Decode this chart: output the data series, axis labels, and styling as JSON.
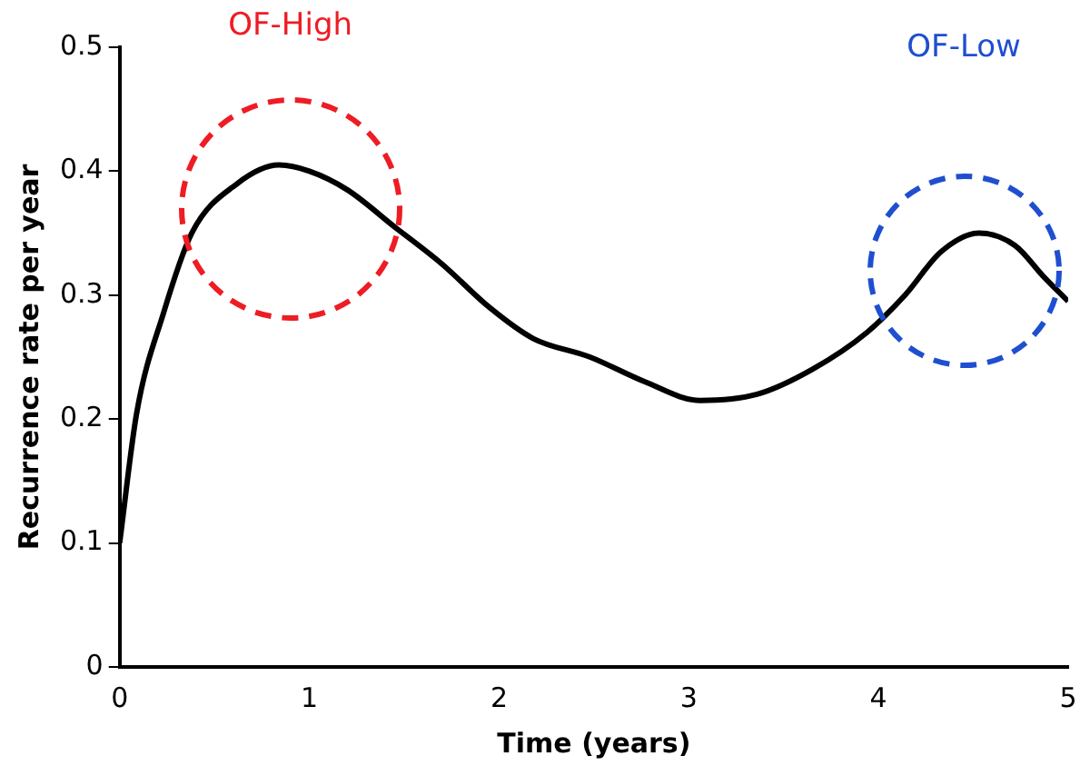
{
  "chart_data": {
    "type": "line",
    "xlabel": "Time (years)",
    "ylabel": "Recurrence rate per year",
    "x": [
      0,
      0.09,
      0.23,
      0.38,
      0.62,
      0.84,
      1.0,
      1.2,
      1.45,
      1.7,
      1.95,
      2.18,
      2.48,
      2.77,
      3.06,
      3.36,
      3.65,
      3.94,
      4.14,
      4.33,
      4.53,
      4.72,
      4.87,
      5
    ],
    "series": [
      {
        "color": "#000000",
        "values": [
          0.1,
          0.205,
          0.285,
          0.35,
          0.39,
          0.405,
          0.4,
          0.385,
          0.355,
          0.325,
          0.29,
          0.265,
          0.25,
          0.23,
          0.215,
          0.22,
          0.24,
          0.27,
          0.3,
          0.335,
          0.35,
          0.34,
          0.315,
          0.295
        ]
      }
    ],
    "xlim": [
      0,
      5
    ],
    "xticks": [
      0,
      1,
      2,
      3,
      4,
      5
    ],
    "ylim": [
      0,
      0.5
    ],
    "yticks": [
      0,
      0.1,
      0.2,
      0.3,
      0.4,
      0.5
    ],
    "grid": false,
    "legend": false,
    "marker": "none",
    "line_style": "solid",
    "annotations": [
      "OF-High",
      "OF-Low"
    ]
  }
}
